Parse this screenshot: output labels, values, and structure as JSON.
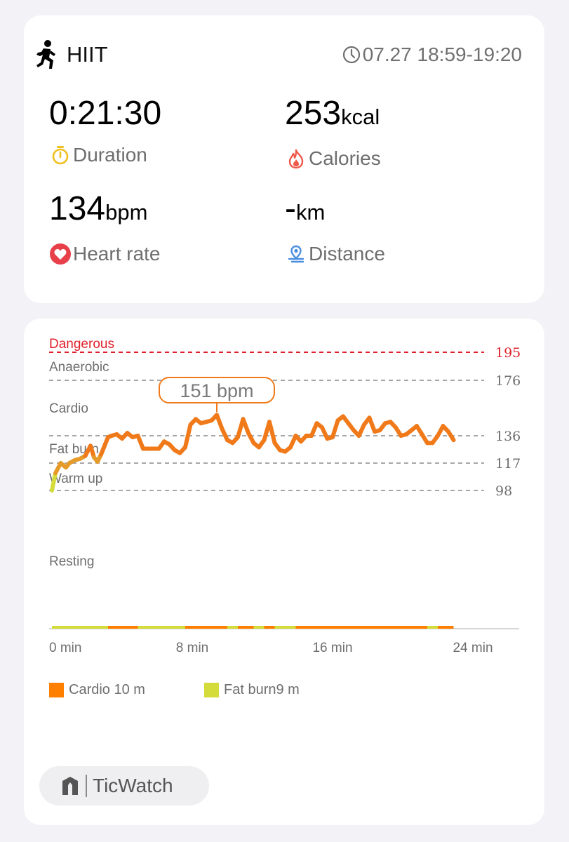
{
  "workout": {
    "name": "HIIT",
    "icon": "running-person-icon",
    "time_range": "07.27 18:59-19:20"
  },
  "metrics": {
    "duration": {
      "value": "0:21:30",
      "label": "Duration",
      "icon": "stopwatch-icon",
      "color": "#f0c020"
    },
    "calories": {
      "value": "253",
      "unit": "kcal",
      "label": "Calories",
      "icon": "flame-icon",
      "color": "#f05a4a"
    },
    "heart_rate": {
      "value": "134",
      "unit": "bpm",
      "label": "Heart rate",
      "icon": "heart-icon",
      "color": "#e8404a"
    },
    "distance": {
      "value": "-",
      "unit": "km",
      "label": "Distance",
      "icon": "location-pin-icon",
      "color": "#4a8ee0"
    }
  },
  "colors": {
    "danger": "#e0212b",
    "cardio": "#ff8000",
    "fat_burn": "#d4dc3c",
    "line_orange": "#f07a1a"
  },
  "chart_data": {
    "type": "line",
    "zones": [
      {
        "name": "Dangerous",
        "threshold": 195,
        "color": "#e0212b"
      },
      {
        "name": "Anaerobic",
        "threshold": 176
      },
      {
        "name": "Cardio",
        "threshold": 136
      },
      {
        "name": "Fat burn",
        "threshold": 117
      },
      {
        "name": "Warm up",
        "threshold": 98
      },
      {
        "name": "Resting"
      }
    ],
    "x_ticks": [
      "0 min",
      "8 min",
      "16 min",
      "24 min"
    ],
    "xlim": [
      0,
      24
    ],
    "peak_label": "151 bpm",
    "series": [
      {
        "x": [
          0,
          0.2,
          0.5,
          0.8,
          1.0,
          1.3,
          1.6,
          1.9,
          2.2,
          2.4,
          2.6,
          2.8,
          3.0,
          3.2,
          3.4,
          3.7,
          4.0,
          4.3,
          4.6,
          4.9,
          5.2,
          5.5,
          5.8,
          6.1,
          6.4,
          6.7,
          7.0,
          7.3,
          7.6,
          7.9,
          8.2,
          8.5,
          8.8,
          9.1,
          9.4,
          9.7,
          10.0,
          10.3,
          10.6,
          10.9,
          11.2,
          11.5,
          11.8,
          12.1,
          12.4,
          12.7,
          13.0,
          13.3,
          13.6,
          13.9,
          14.2,
          14.5,
          14.8,
          15.1,
          15.4,
          15.7,
          16.0,
          16.3,
          16.6,
          16.9,
          17.2,
          17.5,
          17.8,
          18.1,
          18.4,
          18.7,
          19.0,
          19.3,
          19.6,
          19.9,
          20.2,
          20.5,
          20.8,
          21.1,
          21.4,
          21.7,
          22.0,
          22.3,
          22.6,
          22.9
        ],
        "y": [
          98,
          110,
          117,
          114,
          117,
          119,
          120,
          122,
          129,
          121,
          118,
          123,
          129,
          135,
          136,
          137,
          134,
          138,
          135,
          136,
          127,
          127,
          127,
          127,
          132,
          130,
          126,
          124,
          128,
          144,
          148,
          145,
          146,
          147,
          151,
          141,
          133,
          131,
          135,
          148,
          138,
          131,
          128,
          133,
          146,
          131,
          126,
          125,
          128,
          136,
          132,
          136,
          136,
          145,
          142,
          134,
          135,
          147,
          150,
          145,
          140,
          136,
          144,
          149,
          139,
          140,
          145,
          146,
          142,
          136,
          137,
          140,
          143,
          137,
          131,
          131,
          136,
          143,
          139,
          133
        ],
        "colors_by_zone": {
          "low": "#d4dc3c",
          "high": "#f07a1a"
        }
      }
    ],
    "legend": [
      {
        "label": "Cardio 10 m",
        "color": "#ff8000"
      },
      {
        "label": "Fat burn9 m",
        "color": "#d4dc3c"
      }
    ]
  },
  "brand": {
    "name": "TicWatch",
    "icon": "ticwatch-logo-icon"
  }
}
